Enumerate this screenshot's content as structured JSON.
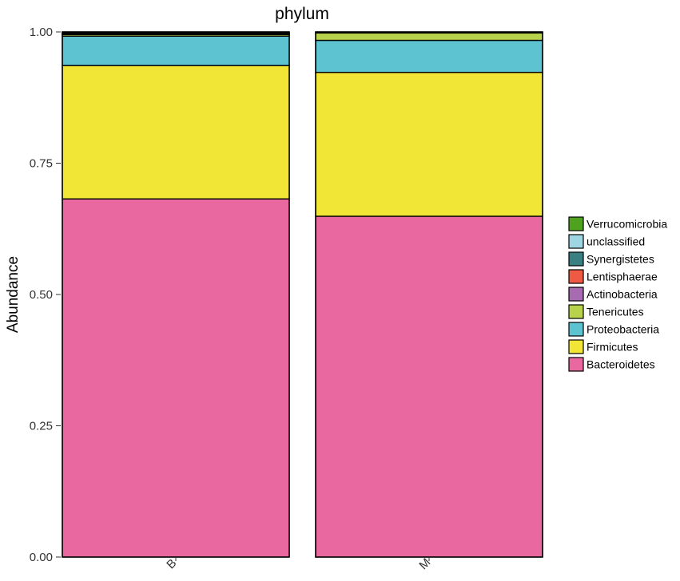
{
  "chart_data": {
    "type": "bar",
    "stacked": true,
    "title": "phylum",
    "xlabel": "",
    "ylabel": "Abundance",
    "ylim": [
      0,
      1
    ],
    "yticks": [
      "0.00",
      "0.25",
      "0.50",
      "0.75",
      "1.00"
    ],
    "categories": [
      "B",
      "M"
    ],
    "grid": false,
    "legend_position": "right",
    "series": [
      {
        "name": "Bacteroidetes",
        "color": "#E9689F",
        "values": [
          0.682,
          0.649
        ]
      },
      {
        "name": "Firmicutes",
        "color": "#F1E636",
        "values": [
          0.254,
          0.274
        ]
      },
      {
        "name": "Proteobacteria",
        "color": "#5EC3D1",
        "values": [
          0.056,
          0.061
        ]
      },
      {
        "name": "Tenericutes",
        "color": "#B9D24C",
        "values": [
          0.003,
          0.014
        ]
      },
      {
        "name": "Actinobacteria",
        "color": "#A66BB0",
        "values": [
          0.001,
          0.0
        ]
      },
      {
        "name": "Lentisphaerae",
        "color": "#EE5A43",
        "values": [
          0.0,
          0.0
        ]
      },
      {
        "name": "Synergistetes",
        "color": "#3A7F82",
        "values": [
          0.001,
          0.0
        ]
      },
      {
        "name": "unclassified",
        "color": "#9ED5E2",
        "values": [
          0.001,
          0.001
        ]
      },
      {
        "name": "Verrucomicrobia",
        "color": "#4FA21E",
        "values": [
          0.002,
          0.001
        ]
      }
    ],
    "legend_order": [
      "Verrucomicrobia",
      "unclassified",
      "Synergistetes",
      "Lentisphaerae",
      "Actinobacteria",
      "Tenericutes",
      "Proteobacteria",
      "Firmicutes",
      "Bacteroidetes"
    ]
  }
}
